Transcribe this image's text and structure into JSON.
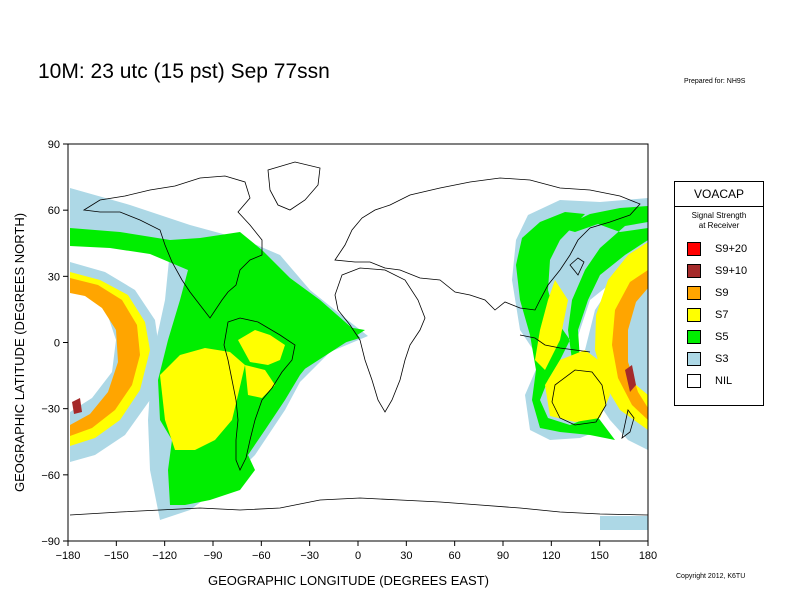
{
  "header": {
    "title": "10M:  23 utc (15 pst) Sep 77ssn",
    "prepared_for": "Prepared for: NH9S",
    "copyright": "Copyright 2012, K6TU"
  },
  "axes": {
    "xlabel": "GEOGRAPHIC LONGITUDE (DEGREES EAST)",
    "ylabel": "GEOGRAPHIC LATITUDE (DEGREES NORTH)",
    "x_ticks": [
      "−180",
      "−150",
      "−120",
      "−90",
      "−60",
      "−30",
      "0",
      "30",
      "60",
      "90",
      "120",
      "150",
      "180"
    ],
    "y_ticks": [
      "90",
      "60",
      "30",
      "0",
      "−30",
      "−60",
      "−90"
    ],
    "xlim": [
      -180,
      180
    ],
    "ylim": [
      -90,
      90
    ]
  },
  "legend": {
    "title": "VOACAP",
    "subtitle_line1": "Signal Strength",
    "subtitle_line2": "at Receiver",
    "items": [
      {
        "label": "S9+20",
        "color": "#ff0000"
      },
      {
        "label": "S9+10",
        "color": "#a52a2a"
      },
      {
        "label": "S9",
        "color": "#ffa500"
      },
      {
        "label": "S7",
        "color": "#ffff00"
      },
      {
        "label": "S5",
        "color": "#00ee00"
      },
      {
        "label": "S3",
        "color": "#add8e6"
      },
      {
        "label": "NIL",
        "color": "#ffffff"
      }
    ]
  },
  "colors": {
    "s3": "#add8e6",
    "s5": "#00ee00",
    "s7": "#ffff00",
    "s9": "#ffa500",
    "s9p10": "#a52a2a",
    "s9p20": "#ff0000",
    "frame": "#000000",
    "coast": "#000000"
  }
}
